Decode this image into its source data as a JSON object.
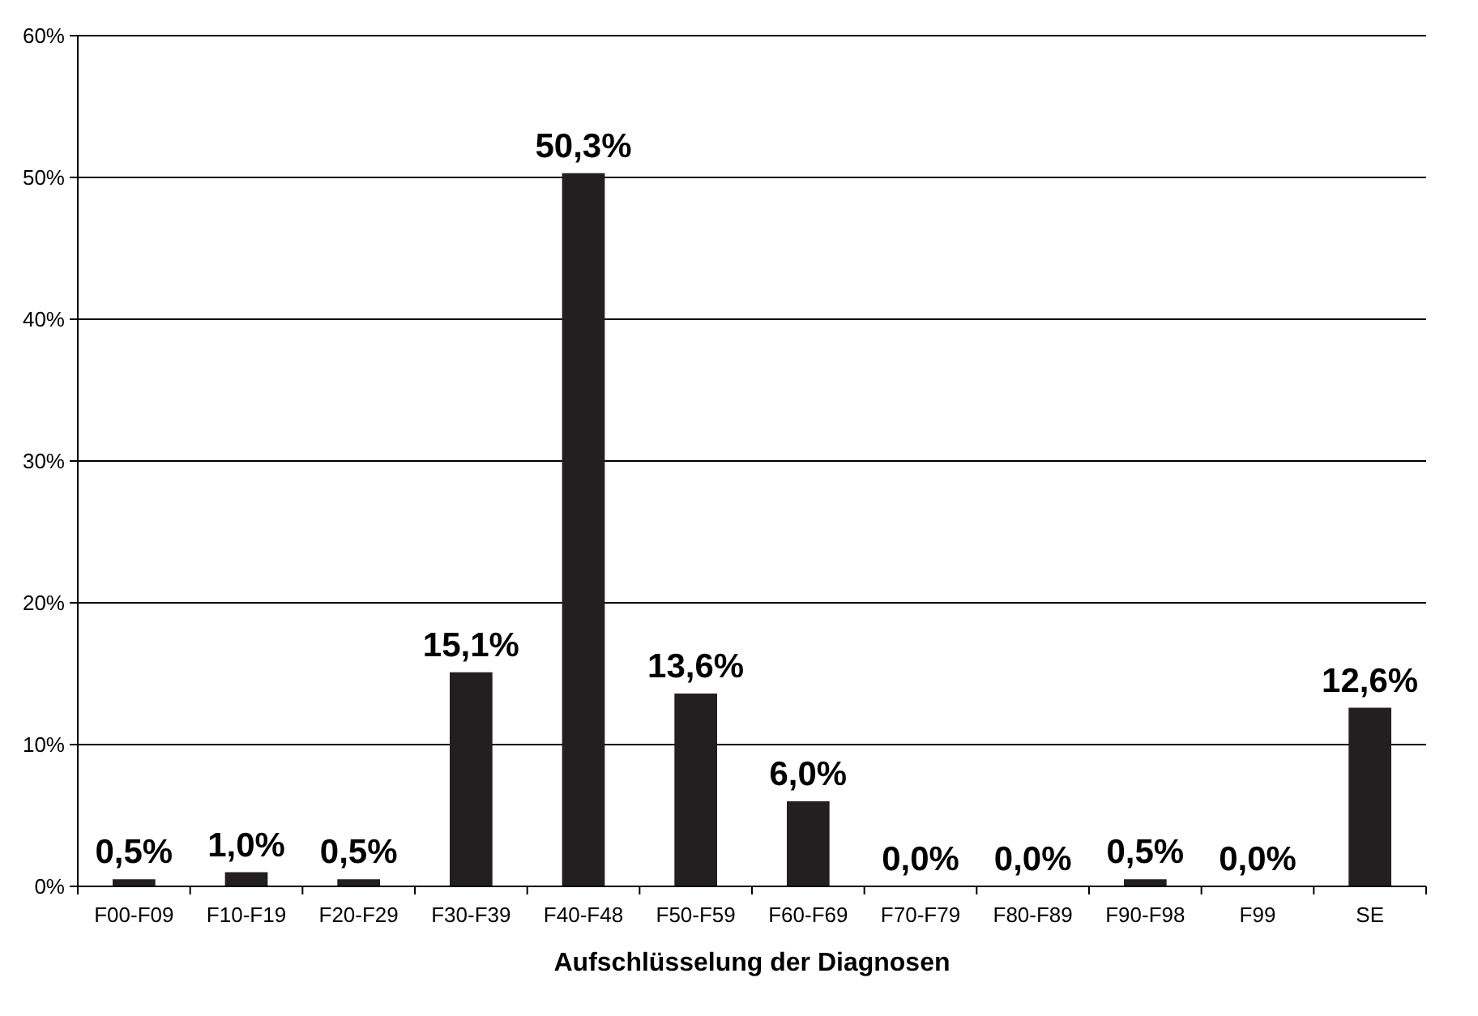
{
  "chart_data": {
    "type": "bar",
    "xlabel": "Aufschlüsselung der Diagnosen",
    "categories": [
      "F00-F09",
      "F10-F19",
      "F20-F29",
      "F30-F39",
      "F40-F48",
      "F50-F59",
      "F60-F69",
      "F70-F79",
      "F80-F89",
      "F90-F98",
      "F99",
      "SE"
    ],
    "values": [
      0.5,
      1.0,
      0.5,
      15.1,
      50.3,
      13.6,
      6.0,
      0.0,
      0.0,
      0.5,
      0.0,
      12.6
    ],
    "value_labels": [
      "0,5%",
      "1,0%",
      "0,5%",
      "15,1%",
      "50,3%",
      "13,6%",
      "6,0%",
      "0,0%",
      "0,0%",
      "0,5%",
      "0,0%",
      "12,6%"
    ],
    "color": "#231f20",
    "ylim": [
      0,
      60
    ],
    "yticks": [
      {
        "value": 0,
        "label": "0%"
      },
      {
        "value": 10,
        "label": "10%"
      },
      {
        "value": 20,
        "label": "20%"
      },
      {
        "value": 30,
        "label": "30%"
      },
      {
        "value": 40,
        "label": "40%"
      },
      {
        "value": 50,
        "label": "50%"
      },
      {
        "value": 60,
        "label": "60%"
      }
    ],
    "grid": "y"
  }
}
